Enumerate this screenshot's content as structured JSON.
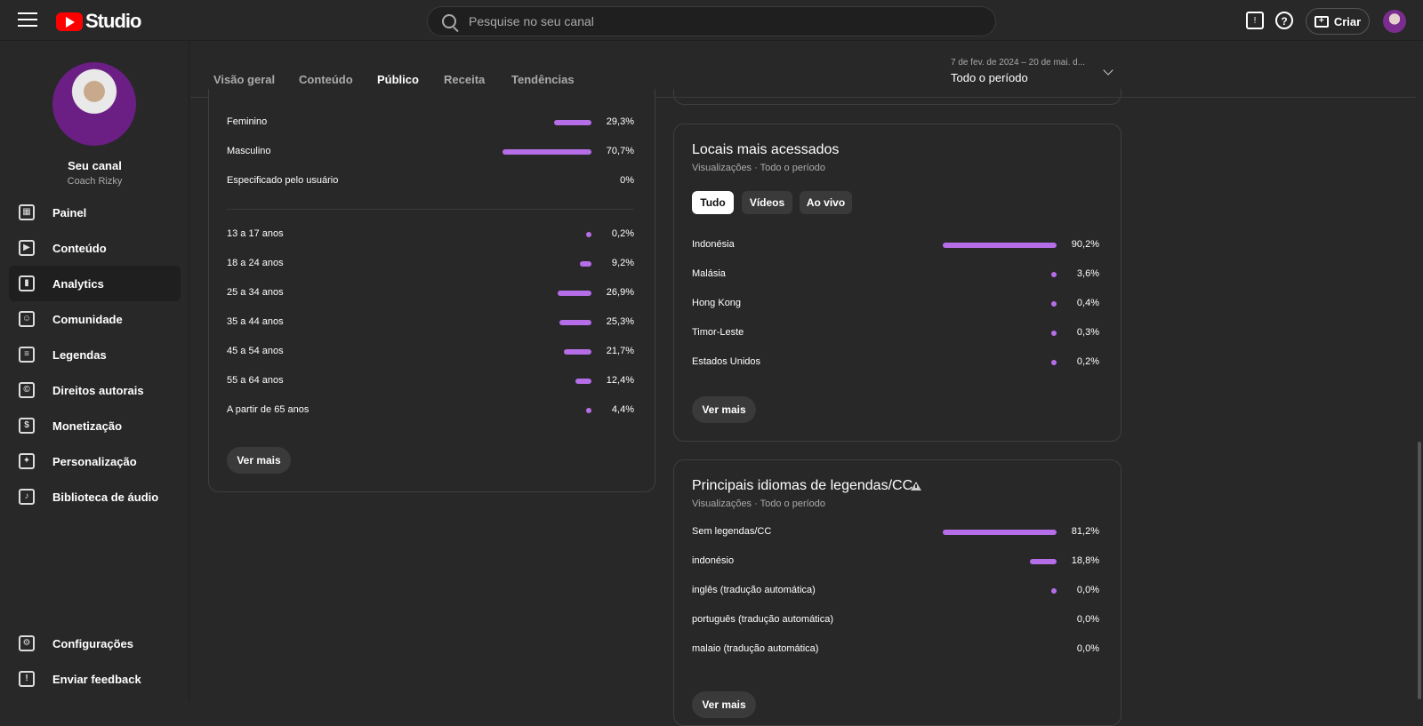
{
  "header": {
    "logo_text": "Studio",
    "search_placeholder": "Pesquise no seu canal",
    "create_label": "Criar",
    "help_glyph": "?",
    "notif_glyph": "!",
    "create_glyph": "+",
    "icons": [
      "menu-icon",
      "youtube-logo",
      "search-icon",
      "feedback-icon",
      "help-icon",
      "create-icon",
      "avatar"
    ]
  },
  "channel": {
    "name": "Seu canal",
    "handle": "Coach Rizky"
  },
  "sidebar": {
    "items": [
      {
        "label": "Painel",
        "icon": "dashboard-icon",
        "glyph": "▦"
      },
      {
        "label": "Conteúdo",
        "icon": "content-icon",
        "glyph": "▶"
      },
      {
        "label": "Analytics",
        "icon": "analytics-icon",
        "glyph": "▮"
      },
      {
        "label": "Comunidade",
        "icon": "community-icon",
        "glyph": "☺"
      },
      {
        "label": "Legendas",
        "icon": "subtitles-icon",
        "glyph": "≡"
      },
      {
        "label": "Direitos autorais",
        "icon": "copyright-icon",
        "glyph": "©"
      },
      {
        "label": "Monetização",
        "icon": "monetization-icon",
        "glyph": "$"
      },
      {
        "label": "Personalização",
        "icon": "customization-icon",
        "glyph": "✦"
      },
      {
        "label": "Biblioteca de áudio",
        "icon": "audio-library-icon",
        "glyph": "♪"
      }
    ],
    "bottom_items": [
      {
        "label": "Configurações",
        "icon": "settings-icon",
        "glyph": "⚙"
      },
      {
        "label": "Enviar feedback",
        "icon": "feedback-icon",
        "glyph": "!"
      }
    ]
  },
  "tabs": [
    "Visão geral",
    "Conteúdo",
    "Público",
    "Receita",
    "Tendências"
  ],
  "active_tab": "Público",
  "period": {
    "range": "7 de fev. de 2024 – 20 de mai. d...",
    "value": "Todo o período"
  },
  "gender_age_card": {
    "gender": [
      {
        "label": "Feminino",
        "value": "29,3%",
        "pct": 29.3
      },
      {
        "label": "Masculino",
        "value": "70,7%",
        "pct": 70.7
      },
      {
        "label": "Especificado pelo usuário",
        "value": "0%",
        "pct": 0
      }
    ],
    "age": [
      {
        "label": "13 a 17 anos",
        "value": "0,2%",
        "pct": 0.2
      },
      {
        "label": "18 a 24 anos",
        "value": "9,2%",
        "pct": 9.2
      },
      {
        "label": "25 a 34 anos",
        "value": "26,9%",
        "pct": 26.9
      },
      {
        "label": "35 a 44 anos",
        "value": "25,3%",
        "pct": 25.3
      },
      {
        "label": "45 a 54 anos",
        "value": "21,7%",
        "pct": 21.7
      },
      {
        "label": "55 a 64 anos",
        "value": "12,4%",
        "pct": 12.4
      },
      {
        "label": "A partir de 65 anos",
        "value": "4,4%",
        "pct": 4.4
      }
    ],
    "more_button": "Ver mais"
  },
  "locations_card": {
    "title": "Locais mais acessados",
    "subtitle": "Visualizações · Todo o período",
    "chips": [
      "Tudo",
      "Vídeos",
      "Ao vivo"
    ],
    "active_chip": "Tudo",
    "rows": [
      {
        "label": "Indonésia",
        "value": "90,2%",
        "pct": 90.2
      },
      {
        "label": "Malásia",
        "value": "3,6%",
        "pct": 3.6
      },
      {
        "label": "Hong Kong",
        "value": "0,4%",
        "pct": 0.4
      },
      {
        "label": "Timor-Leste",
        "value": "0,3%",
        "pct": 0.3
      },
      {
        "label": "Estados Unidos",
        "value": "0,2%",
        "pct": 0.2
      }
    ],
    "more_button": "Ver mais"
  },
  "subtitles_card": {
    "title": "Principais idiomas de legendas/CC",
    "subtitle": "Visualizações · Todo o período",
    "rows": [
      {
        "label": "Sem legendas/CC",
        "value": "81,2%",
        "pct": 81.2
      },
      {
        "label": "indonésio",
        "value": "18,8%",
        "pct": 18.8
      },
      {
        "label": "inglês (tradução automática)",
        "value": "0,0%",
        "pct": 0.01
      },
      {
        "label": "português (tradução automática)",
        "value": "0,0%",
        "pct": 0
      },
      {
        "label": "malaio (tradução automática)",
        "value": "0,0%",
        "pct": 0
      }
    ],
    "more_button": "Ver mais"
  },
  "colors": {
    "accent": "#b56ee8",
    "background": "#282828",
    "brand_red": "#ff0000"
  }
}
